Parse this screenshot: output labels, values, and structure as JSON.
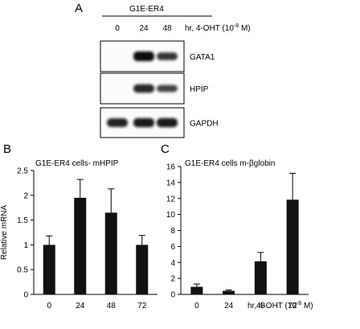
{
  "panel_a": {
    "letter": "A",
    "cell_line": "G1E-ER4",
    "timepoints": [
      "0",
      "24",
      "48"
    ],
    "timepoint_unit": "hr, 4-OHT (10",
    "timepoint_unit_sup": "-8",
    "timepoint_unit_end": " M)",
    "blots": [
      {
        "label": "GATA1",
        "intensities": [
          0,
          1.0,
          0.7
        ]
      },
      {
        "label": "HPIP",
        "intensities": [
          0,
          0.8,
          0.6
        ]
      },
      {
        "label": "GAPDH",
        "intensities": [
          0.85,
          0.9,
          0.9
        ]
      }
    ]
  },
  "chart_data": [
    {
      "type": "bar",
      "panel": "B",
      "title": "G1E-ER4 cells- mHPIP",
      "xlabel": "",
      "ylabel": "Relative mRNA",
      "categories": [
        "0",
        "24",
        "48",
        "72"
      ],
      "values": [
        1.0,
        1.95,
        1.65,
        1.0
      ],
      "errors": [
        0.18,
        0.37,
        0.48,
        0.19
      ],
      "ylim": [
        0,
        2.5
      ],
      "yticks": [
        "0",
        "0.5",
        "1",
        "1.5",
        "2",
        "2.5"
      ],
      "bar_color": "#111111"
    },
    {
      "type": "bar",
      "panel": "C",
      "title": "G1E-ER4 cells m-βglobin",
      "xlabel": "hr, 4-OHT (10",
      "xlabel_sup": "-8",
      "xlabel_end": " M)",
      "ylabel": "",
      "categories": [
        "0",
        "24",
        "48",
        "72"
      ],
      "values": [
        0.95,
        0.45,
        4.15,
        11.85
      ],
      "errors": [
        0.35,
        0.1,
        1.1,
        3.3
      ],
      "ylim": [
        0,
        16
      ],
      "yticks": [
        "0",
        "2",
        "4",
        "6",
        "8",
        "10",
        "12",
        "14",
        "16"
      ],
      "bar_color": "#111111"
    }
  ]
}
